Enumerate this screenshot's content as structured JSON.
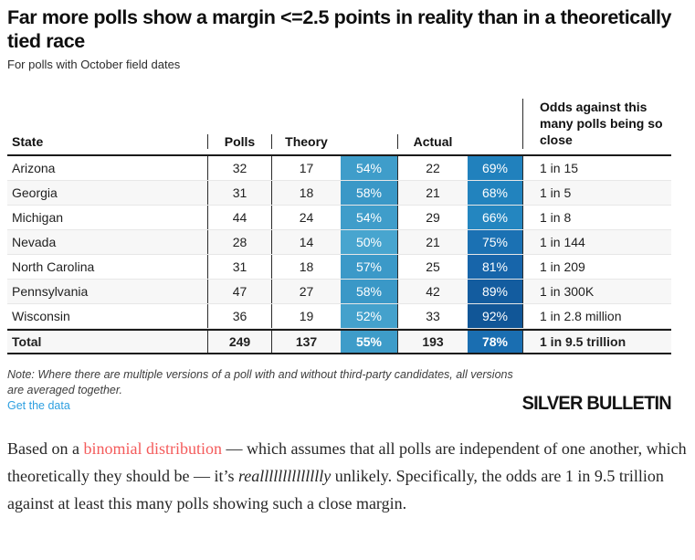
{
  "chart_data": {
    "type": "table",
    "title": "Far more polls show a margin <=2.5 points in reality than in a theoretically tied race",
    "subtitle": "For polls with October field dates",
    "columns": {
      "state": "State",
      "polls": "Polls",
      "theory": "Theory",
      "actual": "Actual",
      "odds": "Odds against this many polls being so close"
    },
    "palette": {
      "theory_scale_mid": "#3f9dca",
      "actual_scale_dark": "#115697"
    },
    "rows": [
      {
        "state": "Arizona",
        "polls": "32",
        "theory": "17",
        "theory_pct": "54%",
        "theory_color": "#3f9dca",
        "actual": "22",
        "actual_pct": "69%",
        "actual_color": "#2181bd",
        "odds": "1 in 15"
      },
      {
        "state": "Georgia",
        "polls": "31",
        "theory": "18",
        "theory_pct": "58%",
        "theory_color": "#3a98c7",
        "actual": "21",
        "actual_pct": "68%",
        "actual_color": "#2283be",
        "odds": "1 in 5"
      },
      {
        "state": "Michigan",
        "polls": "44",
        "theory": "24",
        "theory_pct": "54%",
        "theory_color": "#3f9dca",
        "actual": "29",
        "actual_pct": "66%",
        "actual_color": "#2486c0",
        "odds": "1 in 8"
      },
      {
        "state": "Nevada",
        "polls": "28",
        "theory": "14",
        "theory_pct": "50%",
        "theory_color": "#48a5cf",
        "actual": "21",
        "actual_pct": "75%",
        "actual_color": "#1b71b3",
        "odds": "1 in 144"
      },
      {
        "state": "North Carolina",
        "polls": "31",
        "theory": "18",
        "theory_pct": "57%",
        "theory_color": "#3b99c8",
        "actual": "25",
        "actual_pct": "81%",
        "actual_color": "#1765aa",
        "odds": "1 in 209"
      },
      {
        "state": "Pennsylvania",
        "polls": "47",
        "theory": "27",
        "theory_pct": "58%",
        "theory_color": "#3a98c7",
        "actual": "42",
        "actual_pct": "89%",
        "actual_color": "#135c9f",
        "odds": "1 in 300K"
      },
      {
        "state": "Wisconsin",
        "polls": "36",
        "theory": "19",
        "theory_pct": "52%",
        "theory_color": "#44a1cc",
        "actual": "33",
        "actual_pct": "92%",
        "actual_color": "#115697",
        "odds": "1 in 2.8 million"
      },
      {
        "state": "Total",
        "polls": "249",
        "theory": "137",
        "theory_pct": "55%",
        "theory_color": "#3e9cc9",
        "actual": "193",
        "actual_pct": "78%",
        "actual_color": "#1a6eb1",
        "odds": "1 in 9.5 trillion"
      }
    ]
  },
  "note": {
    "text": "Note: Where there are multiple versions of a poll with and without third-party candidates, all versions are averaged together."
  },
  "footer": {
    "get_data_label": "Get the data",
    "brand": "SILVER BULLETIN"
  },
  "body": {
    "p1_pre": "Based on a ",
    "link_text": "binomial distribution",
    "p1_mid": " — which assumes that all polls are independent of one another, which theoretically they should be — it’s ",
    "italic_word": "realllllllllllllly",
    "p1_post": " unlikely. Specifically, the odds are 1 in 9.5 trillion against at least this many polls showing such a close margin."
  },
  "colors": {
    "get_data_link": "#2e9fe0",
    "body_link": "#f45b5b"
  }
}
